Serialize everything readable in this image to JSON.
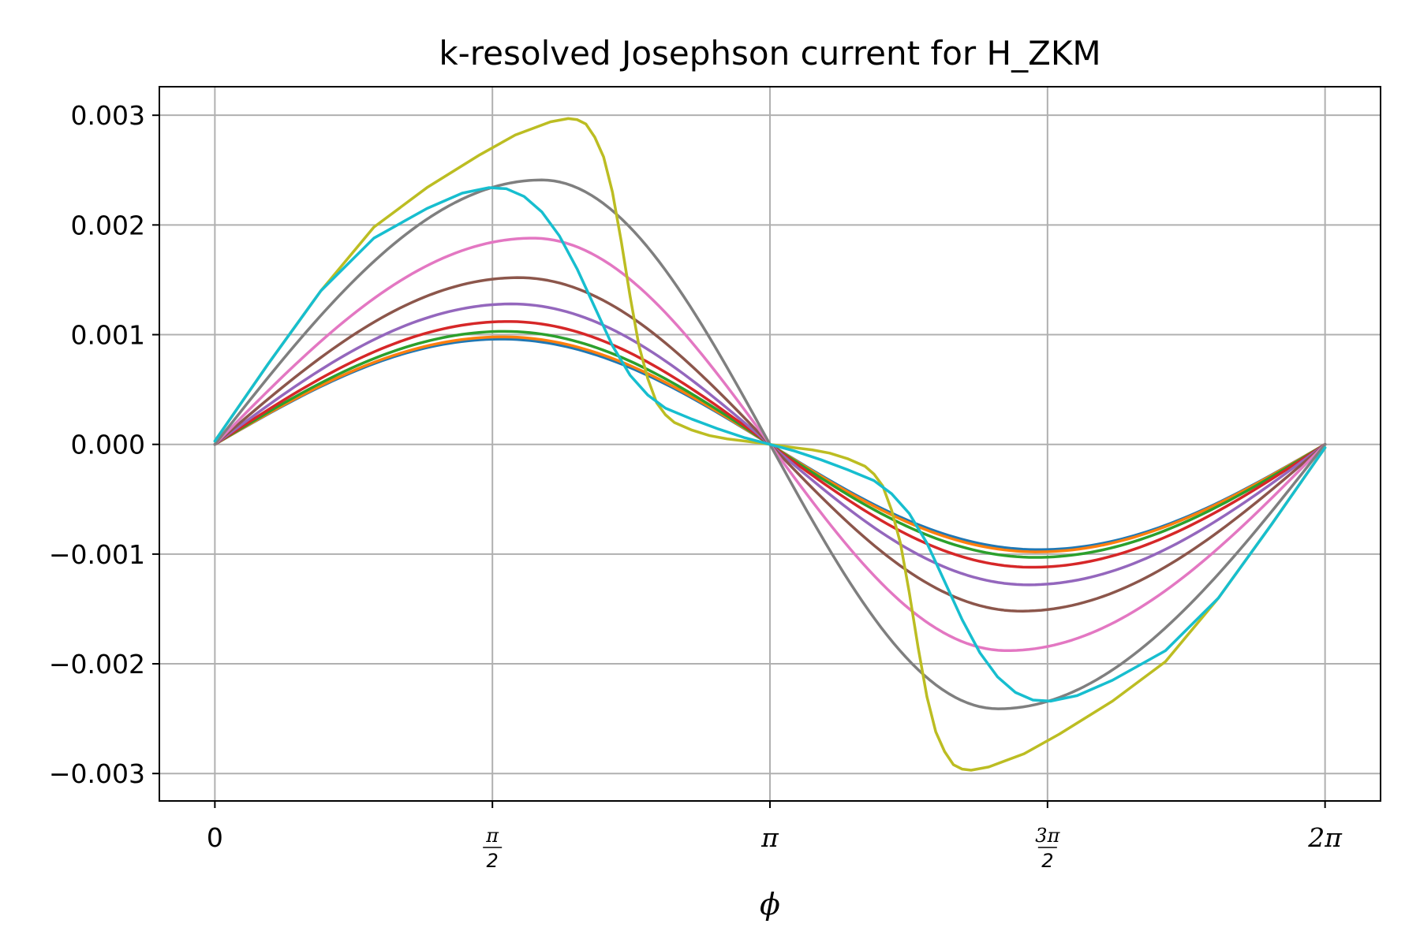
{
  "chart_data": {
    "type": "line",
    "title": "k-resolved Josephson current for H_ZKM",
    "xlabel": "ϕ",
    "ylabel": "",
    "xlim": [
      -0.3142,
      6.5973
    ],
    "ylim": [
      -0.00325,
      0.00326
    ],
    "grid": true,
    "legend": "none",
    "xticks": [
      {
        "value": 0,
        "label": "0",
        "kind": "plain"
      },
      {
        "value": 1.5708,
        "num": "π",
        "den": "2",
        "kind": "frac"
      },
      {
        "value": 3.1416,
        "label": "π",
        "kind": "pi"
      },
      {
        "value": 4.7124,
        "num": "3π",
        "den": "2",
        "kind": "frac"
      },
      {
        "value": 6.2832,
        "label": "2π",
        "kind": "pi"
      }
    ],
    "yticks": [
      {
        "value": 0.003,
        "label": "0.003"
      },
      {
        "value": 0.002,
        "label": "0.002"
      },
      {
        "value": 0.001,
        "label": "0.001"
      },
      {
        "value": 0.0,
        "label": "0.000"
      },
      {
        "value": -0.001,
        "label": "−0.001"
      },
      {
        "value": -0.002,
        "label": "−0.002"
      },
      {
        "value": -0.003,
        "label": "−0.003"
      }
    ],
    "x_range": [
      0,
      6.2832
    ],
    "series": [
      {
        "color": "#1f77b4",
        "amplitude": 0.00096,
        "peak_phase": 1.62
      },
      {
        "color": "#ff7f0e",
        "amplitude": 0.00098,
        "peak_phase": 1.63
      },
      {
        "color": "#2ca02c",
        "amplitude": 0.00103,
        "peak_phase": 1.64
      },
      {
        "color": "#d62728",
        "amplitude": 0.00112,
        "peak_phase": 1.66
      },
      {
        "color": "#9467bd",
        "amplitude": 0.00128,
        "peak_phase": 1.68
      },
      {
        "color": "#8c564b",
        "amplitude": 0.00152,
        "peak_phase": 1.72
      },
      {
        "color": "#e377c2",
        "amplitude": 0.00188,
        "peak_phase": 1.8
      },
      {
        "color": "#7f7f7f",
        "amplitude": 0.00241,
        "peak_phase": 1.85
      },
      {
        "color": "#bcbd22",
        "points": [
          [
            0,
            3e-05
          ],
          [
            0.3,
            0.00073
          ],
          [
            0.6,
            0.0014
          ],
          [
            0.9,
            0.00198
          ],
          [
            1.2,
            0.00234
          ],
          [
            1.5,
            0.00264
          ],
          [
            1.7,
            0.00282
          ],
          [
            1.9,
            0.00294
          ],
          [
            2.0,
            0.00297
          ],
          [
            2.05,
            0.00296
          ],
          [
            2.1,
            0.00292
          ],
          [
            2.15,
            0.0028
          ],
          [
            2.2,
            0.00262
          ],
          [
            2.25,
            0.0023
          ],
          [
            2.3,
            0.00185
          ],
          [
            2.35,
            0.00135
          ],
          [
            2.4,
            0.0009
          ],
          [
            2.45,
            0.0006
          ],
          [
            2.5,
            0.00038
          ],
          [
            2.55,
            0.00027
          ],
          [
            2.6,
            0.0002
          ],
          [
            2.7,
            0.00013
          ],
          [
            2.8,
            8e-05
          ],
          [
            2.9,
            5e-05
          ],
          [
            3.0,
            3e-05
          ],
          [
            3.1416,
            0.0
          ],
          [
            3.28,
            -3e-05
          ],
          [
            3.38,
            -5e-05
          ],
          [
            3.48,
            -8e-05
          ],
          [
            3.58,
            -0.00013
          ],
          [
            3.68,
            -0.0002
          ],
          [
            3.73,
            -0.00027
          ],
          [
            3.78,
            -0.00038
          ],
          [
            3.83,
            -0.0006
          ],
          [
            3.88,
            -0.0009
          ],
          [
            3.93,
            -0.00135
          ],
          [
            3.98,
            -0.00185
          ],
          [
            4.03,
            -0.0023
          ],
          [
            4.08,
            -0.00262
          ],
          [
            4.13,
            -0.0028
          ],
          [
            4.18,
            -0.00292
          ],
          [
            4.23,
            -0.00296
          ],
          [
            4.28,
            -0.00297
          ],
          [
            4.38,
            -0.00294
          ],
          [
            4.58,
            -0.00282
          ],
          [
            4.78,
            -0.00264
          ],
          [
            5.08,
            -0.00234
          ],
          [
            5.38,
            -0.00198
          ],
          [
            5.68,
            -0.0014
          ],
          [
            5.98,
            -0.00073
          ],
          [
            6.2832,
            -3e-05
          ]
        ]
      },
      {
        "color": "#17becf",
        "points": [
          [
            0,
            3e-05
          ],
          [
            0.3,
            0.00073
          ],
          [
            0.6,
            0.0014
          ],
          [
            0.9,
            0.00188
          ],
          [
            1.2,
            0.00215
          ],
          [
            1.4,
            0.00229
          ],
          [
            1.55,
            0.00234
          ],
          [
            1.65,
            0.00233
          ],
          [
            1.75,
            0.00226
          ],
          [
            1.85,
            0.00212
          ],
          [
            1.95,
            0.0019
          ],
          [
            2.05,
            0.0016
          ],
          [
            2.15,
            0.00125
          ],
          [
            2.25,
            0.0009
          ],
          [
            2.35,
            0.00063
          ],
          [
            2.45,
            0.00045
          ],
          [
            2.55,
            0.00033
          ],
          [
            2.7,
            0.00023
          ],
          [
            2.85,
            0.00014
          ],
          [
            3.0,
            6e-05
          ],
          [
            3.1416,
            0.0
          ],
          [
            3.28,
            -6e-05
          ],
          [
            3.43,
            -0.00014
          ],
          [
            3.58,
            -0.00023
          ],
          [
            3.73,
            -0.00033
          ],
          [
            3.83,
            -0.00045
          ],
          [
            3.93,
            -0.00063
          ],
          [
            4.03,
            -0.0009
          ],
          [
            4.13,
            -0.00125
          ],
          [
            4.23,
            -0.0016
          ],
          [
            4.33,
            -0.0019
          ],
          [
            4.43,
            -0.00212
          ],
          [
            4.53,
            -0.00226
          ],
          [
            4.63,
            -0.00233
          ],
          [
            4.73,
            -0.00234
          ],
          [
            4.88,
            -0.00229
          ],
          [
            5.08,
            -0.00215
          ],
          [
            5.38,
            -0.00188
          ],
          [
            5.68,
            -0.0014
          ],
          [
            5.98,
            -0.00073
          ],
          [
            6.2832,
            -3e-05
          ]
        ]
      }
    ]
  }
}
